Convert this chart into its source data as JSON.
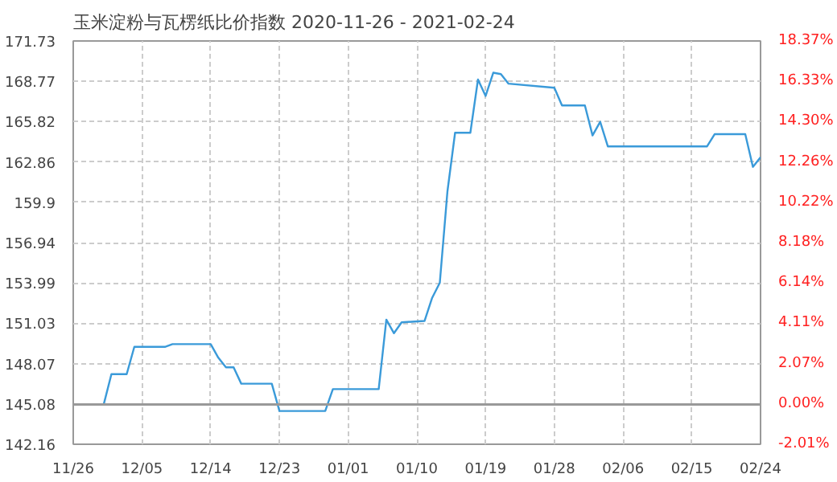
{
  "chart_data": {
    "type": "line",
    "title": "玉米淀粉与瓦楞纸比价指数 2020-11-26 - 2021-02-24",
    "x": [
      "2020-11-26",
      "2020-11-30",
      "2020-12-01",
      "2020-12-03",
      "2020-12-04",
      "2020-12-08",
      "2020-12-09",
      "2020-12-14",
      "2020-12-15",
      "2020-12-16",
      "2020-12-17",
      "2020-12-18",
      "2020-12-22",
      "2020-12-23",
      "2020-12-29",
      "2020-12-30",
      "2021-01-05",
      "2021-01-06",
      "2021-01-07",
      "2021-01-08",
      "2021-01-11",
      "2021-01-12",
      "2021-01-13",
      "2021-01-14",
      "2021-01-15",
      "2021-01-17",
      "2021-01-18",
      "2021-01-19",
      "2021-01-20",
      "2021-01-21",
      "2021-01-22",
      "2021-01-28",
      "2021-01-29",
      "2021-02-01",
      "2021-02-02",
      "2021-02-03",
      "2021-02-04",
      "2021-02-17",
      "2021-02-18",
      "2021-02-22",
      "2021-02-23",
      "2021-02-24"
    ],
    "series": [
      {
        "color": "#3a9ad9",
        "values": [
          145.1,
          145.1,
          147.3,
          147.3,
          149.3,
          149.3,
          149.5,
          149.5,
          148.5,
          147.8,
          147.8,
          146.6,
          146.6,
          144.6,
          144.6,
          146.2,
          146.2,
          151.3,
          150.3,
          151.1,
          151.2,
          152.9,
          154.0,
          160.7,
          165.0,
          165.0,
          168.9,
          167.7,
          169.4,
          169.3,
          168.6,
          168.3,
          167.0,
          167.0,
          164.8,
          165.8,
          164.0,
          164.0,
          164.9,
          164.9,
          162.5,
          163.2
        ]
      }
    ],
    "xlim": [
      "2020-11-26",
      "2021-02-24"
    ],
    "xticks": [
      {
        "value": "2020-11-26",
        "label": "11/26"
      },
      {
        "value": "2020-12-05",
        "label": "12/05"
      },
      {
        "value": "2020-12-14",
        "label": "12/14"
      },
      {
        "value": "2020-12-23",
        "label": "12/23"
      },
      {
        "value": "2021-01-01",
        "label": "01/01"
      },
      {
        "value": "2021-01-10",
        "label": "01/10"
      },
      {
        "value": "2021-01-19",
        "label": "01/19"
      },
      {
        "value": "2021-01-28",
        "label": "01/28"
      },
      {
        "value": "2021-02-06",
        "label": "02/06"
      },
      {
        "value": "2021-02-15",
        "label": "02/15"
      },
      {
        "value": "2021-02-24",
        "label": "02/24"
      }
    ],
    "ylim": [
      142.16,
      171.73
    ],
    "yticks": [
      142.16,
      145.08,
      148.07,
      151.03,
      153.99,
      156.94,
      159.9,
      162.86,
      165.82,
      168.77,
      171.73
    ],
    "y2lim": [
      -2.01,
      18.37
    ],
    "y2ticks": [
      {
        "value": -2.01,
        "label": "-2.01%"
      },
      {
        "value": 0,
        "label": "0.00%"
      },
      {
        "value": 2.07,
        "label": "2.07%"
      },
      {
        "value": 4.11,
        "label": "4.11%"
      },
      {
        "value": 6.14,
        "label": "6.14%"
      },
      {
        "value": 8.18,
        "label": "8.18%"
      },
      {
        "value": 10.22,
        "label": "10.22%"
      },
      {
        "value": 12.26,
        "label": "12.26%"
      },
      {
        "value": 14.3,
        "label": "14.30%"
      },
      {
        "value": 16.33,
        "label": "16.33%"
      },
      {
        "value": 18.37,
        "label": "18.37%"
      }
    ],
    "ref_lines": [
      {
        "axis": "y",
        "value": 145.08,
        "color": "#999999"
      }
    ],
    "grid": true,
    "line_style": "solid",
    "marker": "none"
  }
}
